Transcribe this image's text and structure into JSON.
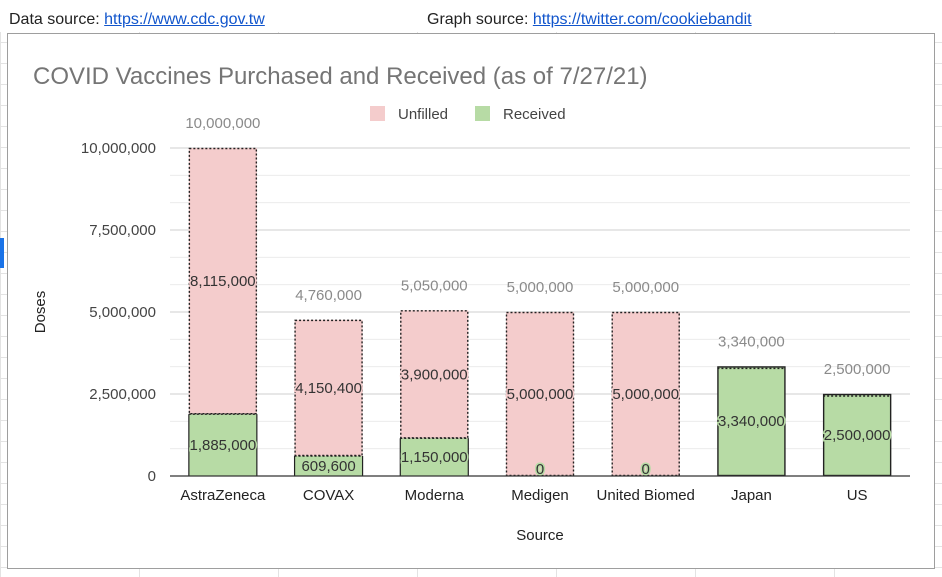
{
  "sources": {
    "data_label": "Data source: ",
    "data_url": "https://www.cdc.gov.tw",
    "graph_label": "Graph source: ",
    "graph_url": "https://twitter.com/cookiebandit"
  },
  "chart_data": {
    "type": "bar",
    "stacked": true,
    "title": "COVID Vaccines Purchased and Received (as of 7/27/21)",
    "xlabel": "Source",
    "ylabel": "Doses",
    "ylim": [
      0,
      10000000
    ],
    "yticks": [
      0,
      2500000,
      5000000,
      7500000,
      10000000
    ],
    "ytick_labels": [
      "0",
      "2,500,000",
      "5,000,000",
      "7,500,000",
      "10,000,000"
    ],
    "grid": true,
    "legend_position": "top-center",
    "categories": [
      "AstraZeneca",
      "COVAX",
      "Moderna",
      "Medigen",
      "United Biomed",
      "Japan",
      "US"
    ],
    "series": [
      {
        "name": "Received",
        "color": "#b7dba5",
        "values": [
          1885000,
          609600,
          1150000,
          0,
          0,
          3340000,
          2500000
        ],
        "labels": [
          "1,885,000",
          "609,600",
          "1,150,000",
          "0",
          "0",
          "3,340,000",
          "2,500,000"
        ]
      },
      {
        "name": "Unfilled",
        "color": "#f4cccc",
        "values": [
          8115000,
          4150400,
          3900000,
          5000000,
          5000000,
          0,
          0
        ],
        "labels": [
          "8,115,000",
          "4,150,400",
          "3,900,000",
          "5,000,000",
          "5,000,000",
          "",
          ""
        ]
      }
    ],
    "totals": [
      10000000,
      4760000,
      5050000,
      5000000,
      5000000,
      3340000,
      2500000
    ],
    "total_labels": [
      "10,000,000",
      "4,760,000",
      "5,050,000",
      "5,000,000",
      "5,000,000",
      "3,340,000",
      "2,500,000"
    ],
    "legend_order": [
      "Unfilled",
      "Received"
    ]
  }
}
